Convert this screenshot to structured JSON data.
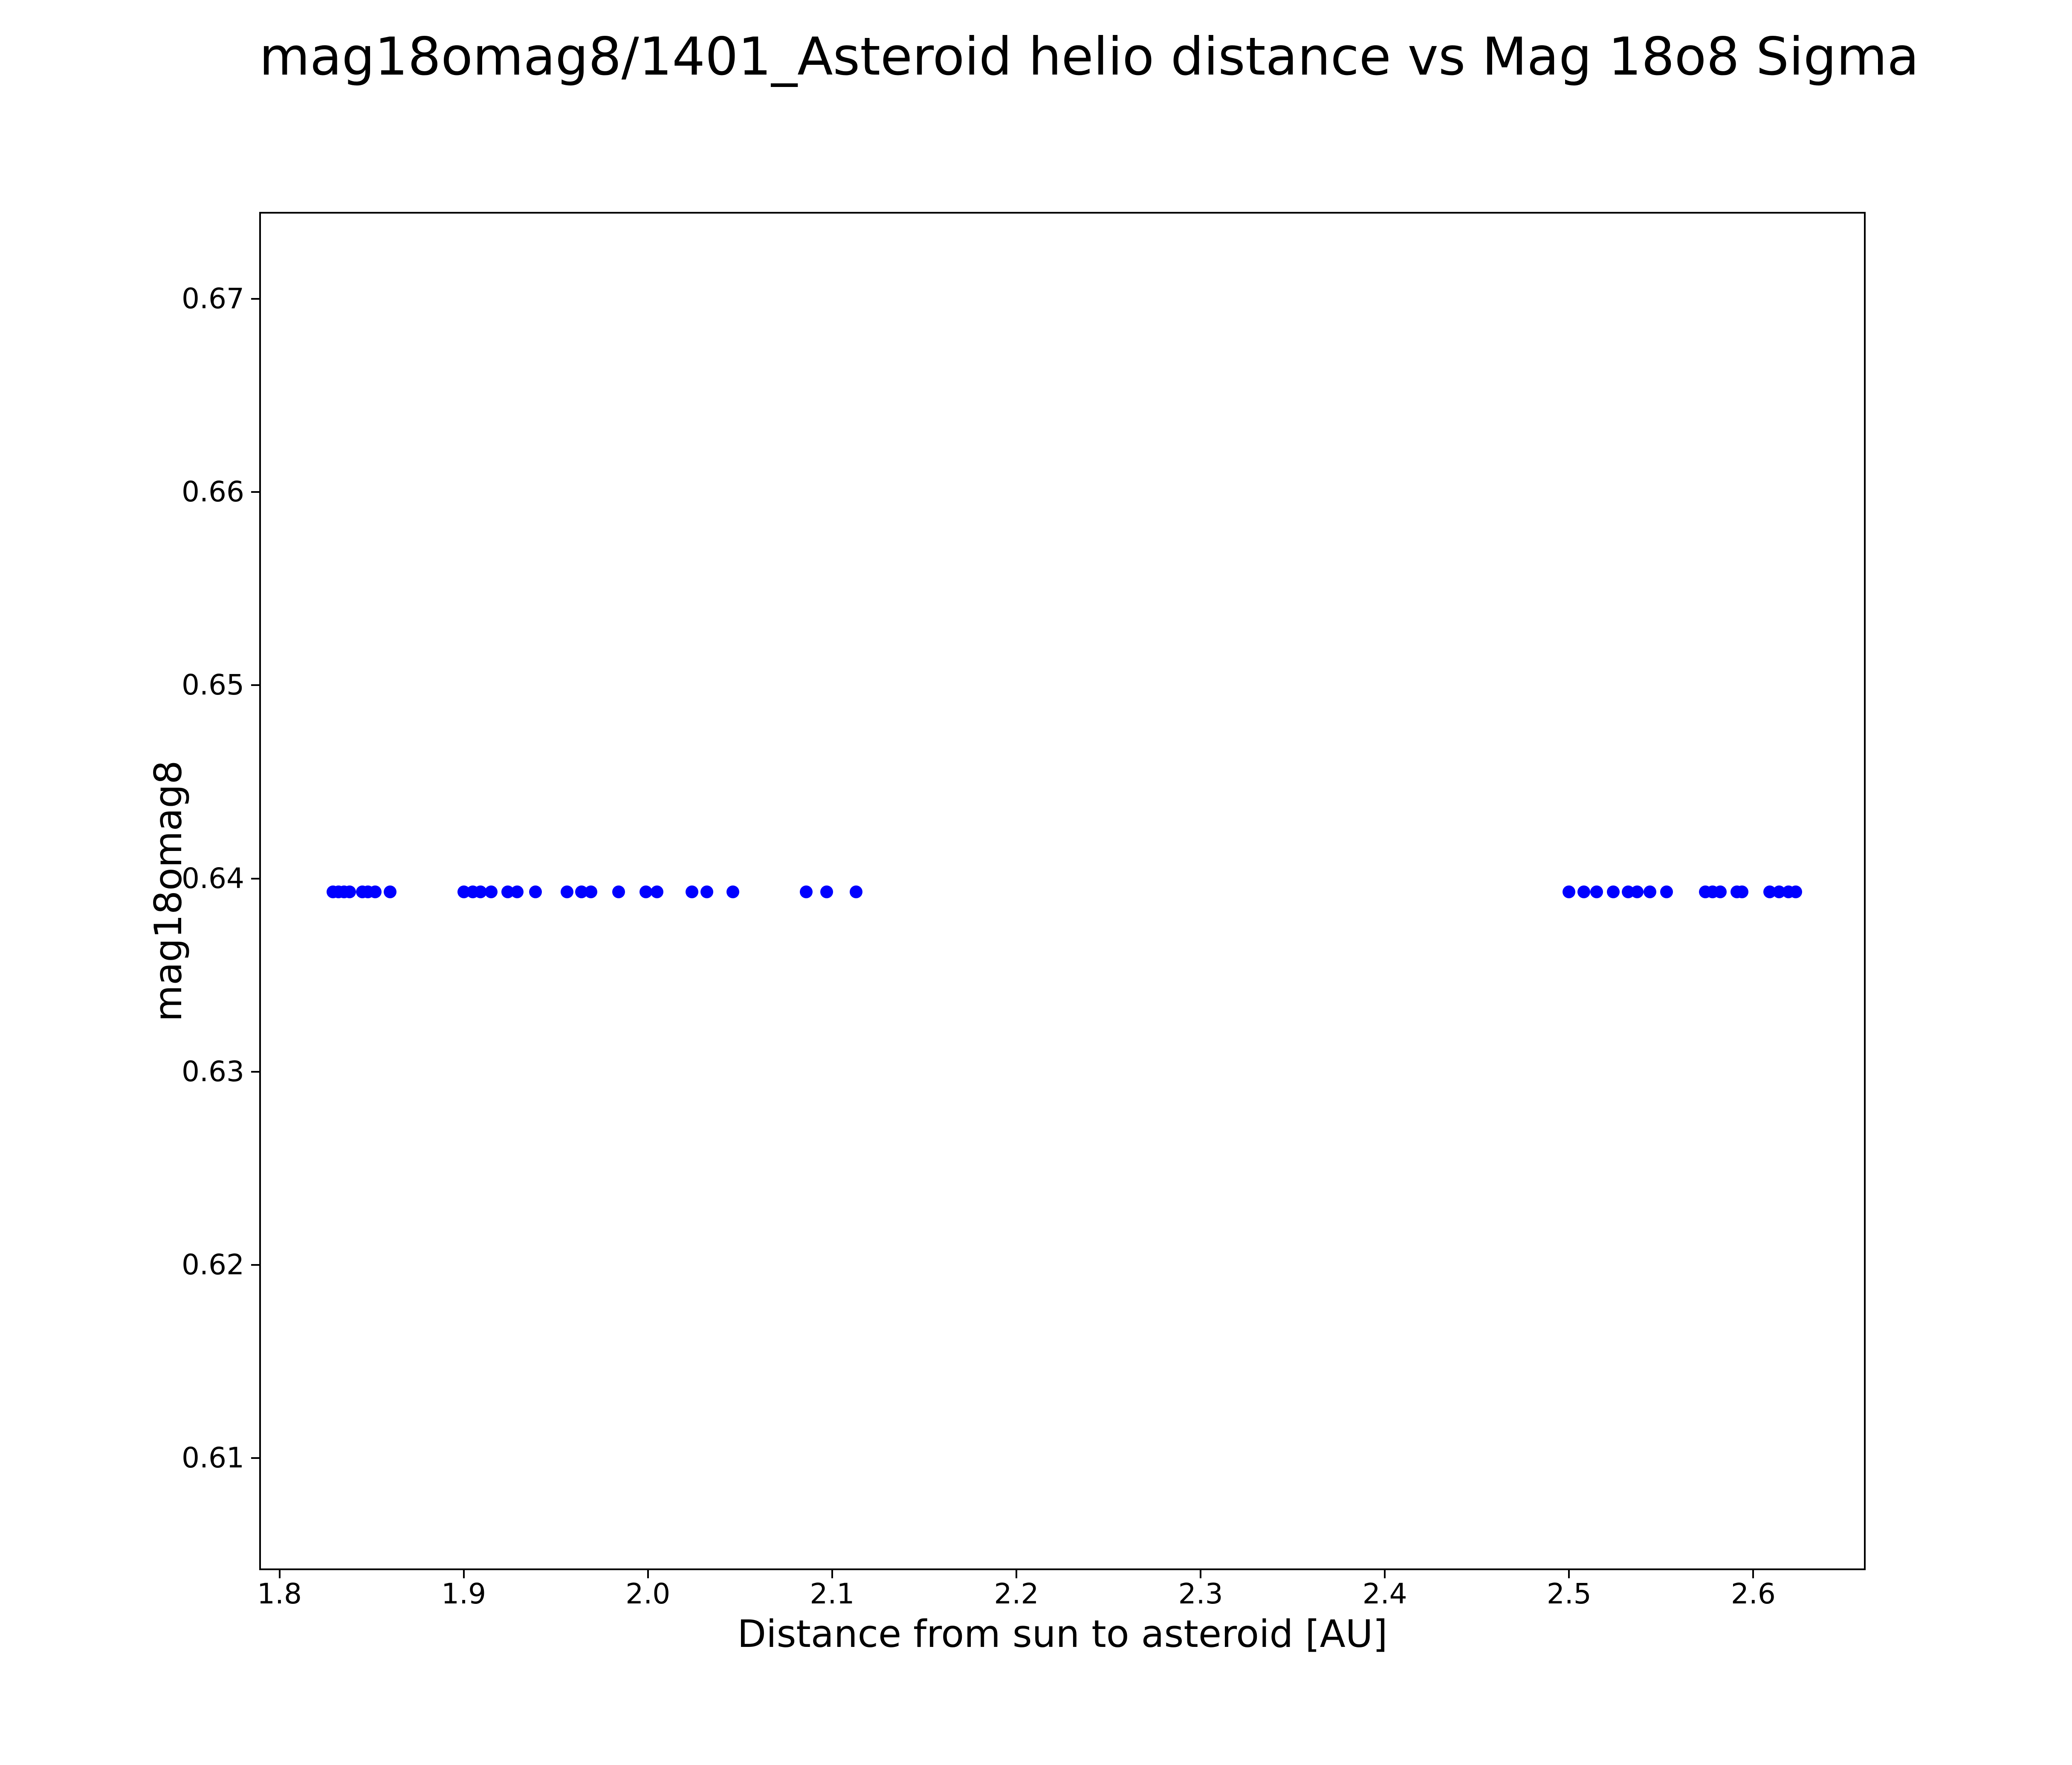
{
  "chart_data": {
    "type": "scatter",
    "title": "mag18omag8/1401_Asteroid helio distance vs Mag 18o8 Sigma",
    "xlabel": "Distance from sun to asteroid [AU]",
    "ylabel": "mag18omag8",
    "xlim": [
      1.789,
      2.661
    ],
    "ylim": [
      0.6042,
      0.6745
    ],
    "x_ticks": [
      1.8,
      1.9,
      2.0,
      2.1,
      2.2,
      2.3,
      2.4,
      2.5,
      2.6
    ],
    "x_tick_labels": [
      "1.8",
      "1.9",
      "2.0",
      "2.1",
      "2.2",
      "2.3",
      "2.4",
      "2.5",
      "2.6"
    ],
    "y_ticks": [
      0.61,
      0.62,
      0.63,
      0.64,
      0.65,
      0.66,
      0.67
    ],
    "y_tick_labels": [
      "0.61",
      "0.62",
      "0.63",
      "0.64",
      "0.65",
      "0.66",
      "0.67"
    ],
    "grid": false,
    "legend": null,
    "marker_color": "#0000ff",
    "marker_shape": "circle",
    "series_y_constant": 0.6393,
    "x": [
      1.829,
      1.832,
      1.835,
      1.838,
      1.845,
      1.848,
      1.852,
      1.86,
      1.9,
      1.905,
      1.909,
      1.915,
      1.924,
      1.929,
      1.939,
      1.956,
      1.964,
      1.969,
      1.984,
      1.999,
      2.005,
      2.024,
      2.032,
      2.046,
      2.086,
      2.097,
      2.113,
      2.5,
      2.508,
      2.515,
      2.524,
      2.532,
      2.537,
      2.544,
      2.553,
      2.574,
      2.578,
      2.582,
      2.591,
      2.594,
      2.609,
      2.614,
      2.619,
      2.623
    ],
    "y": [
      0.6393,
      0.6393,
      0.6393,
      0.6393,
      0.6393,
      0.6393,
      0.6393,
      0.6393,
      0.6393,
      0.6393,
      0.6393,
      0.6393,
      0.6393,
      0.6393,
      0.6393,
      0.6393,
      0.6393,
      0.6393,
      0.6393,
      0.6393,
      0.6393,
      0.6393,
      0.6393,
      0.6393,
      0.6393,
      0.6393,
      0.6393,
      0.6393,
      0.6393,
      0.6393,
      0.6393,
      0.6393,
      0.6393,
      0.6393,
      0.6393,
      0.6393,
      0.6393,
      0.6393,
      0.6393,
      0.6393,
      0.6393,
      0.6393,
      0.6393,
      0.6393
    ]
  }
}
